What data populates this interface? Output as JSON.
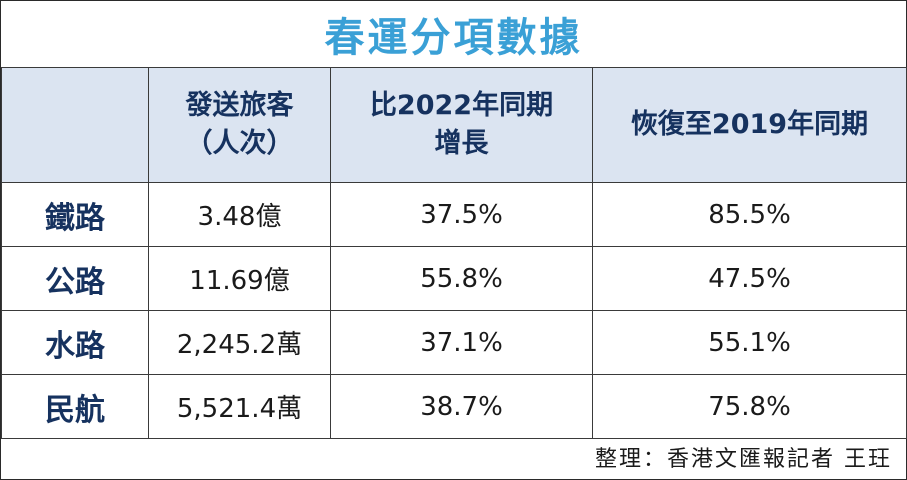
{
  "title": "春運分項數據",
  "headers": [
    {
      "line1": "發送旅客",
      "line2": "（人次）"
    },
    {
      "line1": "比2022年同期",
      "line2": "增長"
    },
    {
      "line1": "恢復至2019年同期",
      "line2": ""
    }
  ],
  "rows": [
    {
      "name": "鐵路",
      "passengers": "3.48億",
      "growth_2022": "37.5%",
      "recovery_2019": "85.5%"
    },
    {
      "name": "公路",
      "passengers": "11.69億",
      "growth_2022": "55.8%",
      "recovery_2019": "47.5%"
    },
    {
      "name": "水路",
      "passengers": "2,245.2萬",
      "growth_2022": "37.1%",
      "recovery_2019": "55.1%"
    },
    {
      "name": "民航",
      "passengers": "5,521.4萬",
      "growth_2022": "38.7%",
      "recovery_2019": "75.8%"
    }
  ],
  "credit": "整理：香港文匯報記者 王玨",
  "colors": {
    "title": "#3aa0d6",
    "header_bg": "#dbe4f1",
    "header_text": "#16325f"
  }
}
